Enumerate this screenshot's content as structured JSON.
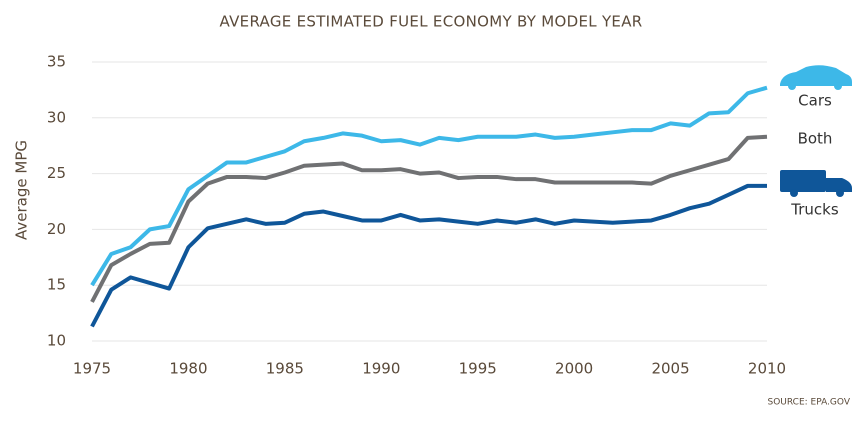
{
  "chart_data": {
    "type": "line",
    "title": "AVERAGE ESTIMATED FUEL ECONOMY BY MODEL YEAR",
    "y_label": "Average MPG",
    "source": "SOURCE: EPA.GOV",
    "x": [
      1975,
      1976,
      1977,
      1978,
      1979,
      1980,
      1981,
      1982,
      1983,
      1984,
      1985,
      1986,
      1987,
      1988,
      1989,
      1990,
      1991,
      1992,
      1993,
      1994,
      1995,
      1996,
      1997,
      1998,
      1999,
      2000,
      2001,
      2002,
      2003,
      2004,
      2005,
      2006,
      2007,
      2008,
      2009,
      2010
    ],
    "series": [
      {
        "name": "Cars",
        "color": "#3db8e8",
        "values": [
          15.0,
          17.8,
          18.4,
          20.0,
          20.3,
          23.6,
          24.8,
          26.0,
          26.0,
          26.5,
          27.0,
          27.9,
          28.2,
          28.6,
          28.4,
          27.9,
          28.0,
          27.6,
          28.2,
          28.0,
          28.3,
          28.3,
          28.3,
          28.5,
          28.2,
          28.3,
          28.5,
          28.7,
          28.9,
          28.9,
          29.5,
          29.3,
          30.4,
          30.5,
          32.2,
          32.7
        ]
      },
      {
        "name": "Both",
        "color": "#707173",
        "values": [
          13.5,
          16.8,
          17.8,
          18.7,
          18.8,
          22.5,
          24.1,
          24.7,
          24.7,
          24.6,
          25.1,
          25.7,
          25.8,
          25.9,
          25.3,
          25.3,
          25.4,
          25.0,
          25.1,
          24.6,
          24.7,
          24.7,
          24.5,
          24.5,
          24.2,
          24.2,
          24.2,
          24.2,
          24.2,
          24.1,
          24.8,
          25.3,
          25.8,
          26.3,
          28.2,
          28.3
        ]
      },
      {
        "name": "Trucks",
        "color": "#0f5699",
        "values": [
          11.3,
          14.6,
          15.7,
          15.2,
          14.7,
          18.4,
          20.1,
          20.5,
          20.9,
          20.5,
          20.6,
          21.4,
          21.6,
          21.2,
          20.8,
          20.8,
          21.3,
          20.8,
          20.9,
          20.7,
          20.5,
          20.8,
          20.6,
          20.9,
          20.5,
          20.8,
          20.7,
          20.6,
          20.7,
          20.8,
          21.3,
          21.9,
          22.3,
          23.1,
          23.9,
          23.9
        ]
      }
    ],
    "xlim": [
      1975,
      2010
    ],
    "xticks": [
      1975,
      1980,
      1985,
      1990,
      1995,
      2000,
      2005,
      2010
    ],
    "ylim": [
      10,
      35
    ],
    "yticks": [
      10,
      15,
      20,
      25,
      30,
      35
    ],
    "grid": true
  }
}
